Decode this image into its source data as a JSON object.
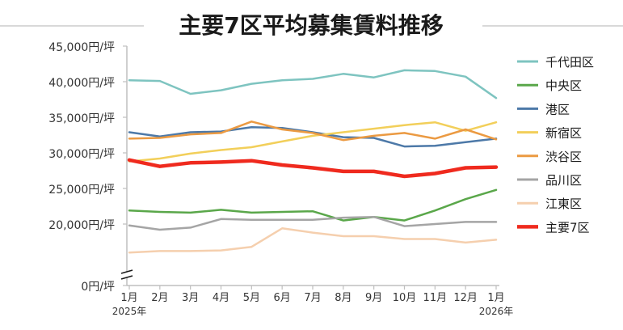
{
  "chart_data": {
    "type": "line",
    "title": "主要7区平均募集賃料推移",
    "categories": [
      "1月",
      "2月",
      "3月",
      "4月",
      "5月",
      "6月",
      "7月",
      "8月",
      "9月",
      "10月",
      "11月",
      "12月",
      "1月"
    ],
    "year_labels": [
      {
        "index": 0,
        "label": "2025年"
      },
      {
        "index": 12,
        "label": "2026年"
      }
    ],
    "y_ticks": [
      {
        "value": 0,
        "label": "0円/坪"
      },
      {
        "value": 20000,
        "label": "20,000円/坪"
      },
      {
        "value": 25000,
        "label": "25,000円/坪"
      },
      {
        "value": 30000,
        "label": "30,000円/坪"
      },
      {
        "value": 35000,
        "label": "35,000円/坪"
      },
      {
        "value": 40000,
        "label": "40,000円/坪"
      },
      {
        "value": 45000,
        "label": "45,000円/坪"
      }
    ],
    "ylim": [
      0,
      45000
    ],
    "y_axis_break": true,
    "grid": false,
    "legend_position": "right",
    "series": [
      {
        "name": "千代田区",
        "color": "#7ec4c0",
        "width": 2.5,
        "values": [
          40200,
          40100,
          38300,
          38800,
          39700,
          40200,
          40400,
          41100,
          40600,
          41600,
          41500,
          40700,
          37700
        ]
      },
      {
        "name": "中央区",
        "color": "#5aa74a",
        "width": 2.5,
        "values": [
          21900,
          21700,
          21600,
          22000,
          21600,
          21700,
          21800,
          20500,
          21000,
          20500,
          21900,
          23500,
          24800
        ]
      },
      {
        "name": "港区",
        "color": "#4d79a8",
        "width": 2.5,
        "values": [
          32900,
          32300,
          32900,
          33000,
          33600,
          33500,
          32900,
          32200,
          32100,
          30900,
          31000,
          31500,
          32000
        ]
      },
      {
        "name": "新宿区",
        "color": "#f2cf5a",
        "width": 2.5,
        "values": [
          28800,
          29200,
          29900,
          30400,
          30800,
          31600,
          32400,
          32900,
          33400,
          33900,
          34300,
          33100,
          34300
        ]
      },
      {
        "name": "渋谷区",
        "color": "#eb9a42",
        "width": 2.5,
        "values": [
          32000,
          32100,
          32600,
          32800,
          34400,
          33300,
          32800,
          31800,
          32400,
          32800,
          32000,
          33300,
          31900
        ]
      },
      {
        "name": "品川区",
        "color": "#a5a5a5",
        "width": 2.5,
        "values": [
          19800,
          19200,
          19500,
          20700,
          20600,
          20600,
          20600,
          20900,
          21000,
          19700,
          20000,
          20300,
          20300
        ]
      },
      {
        "name": "江東区",
        "color": "#f5cfae",
        "width": 2.5,
        "values": [
          16000,
          16200,
          16200,
          16300,
          16800,
          19400,
          18800,
          18300,
          18300,
          17900,
          17900,
          17400,
          17800
        ]
      },
      {
        "name": "主要7区",
        "color": "#ef2a1e",
        "width": 4.5,
        "values": [
          29000,
          28100,
          28600,
          28700,
          28900,
          28300,
          27900,
          27400,
          27400,
          26700,
          27100,
          27900,
          28000
        ]
      }
    ]
  }
}
